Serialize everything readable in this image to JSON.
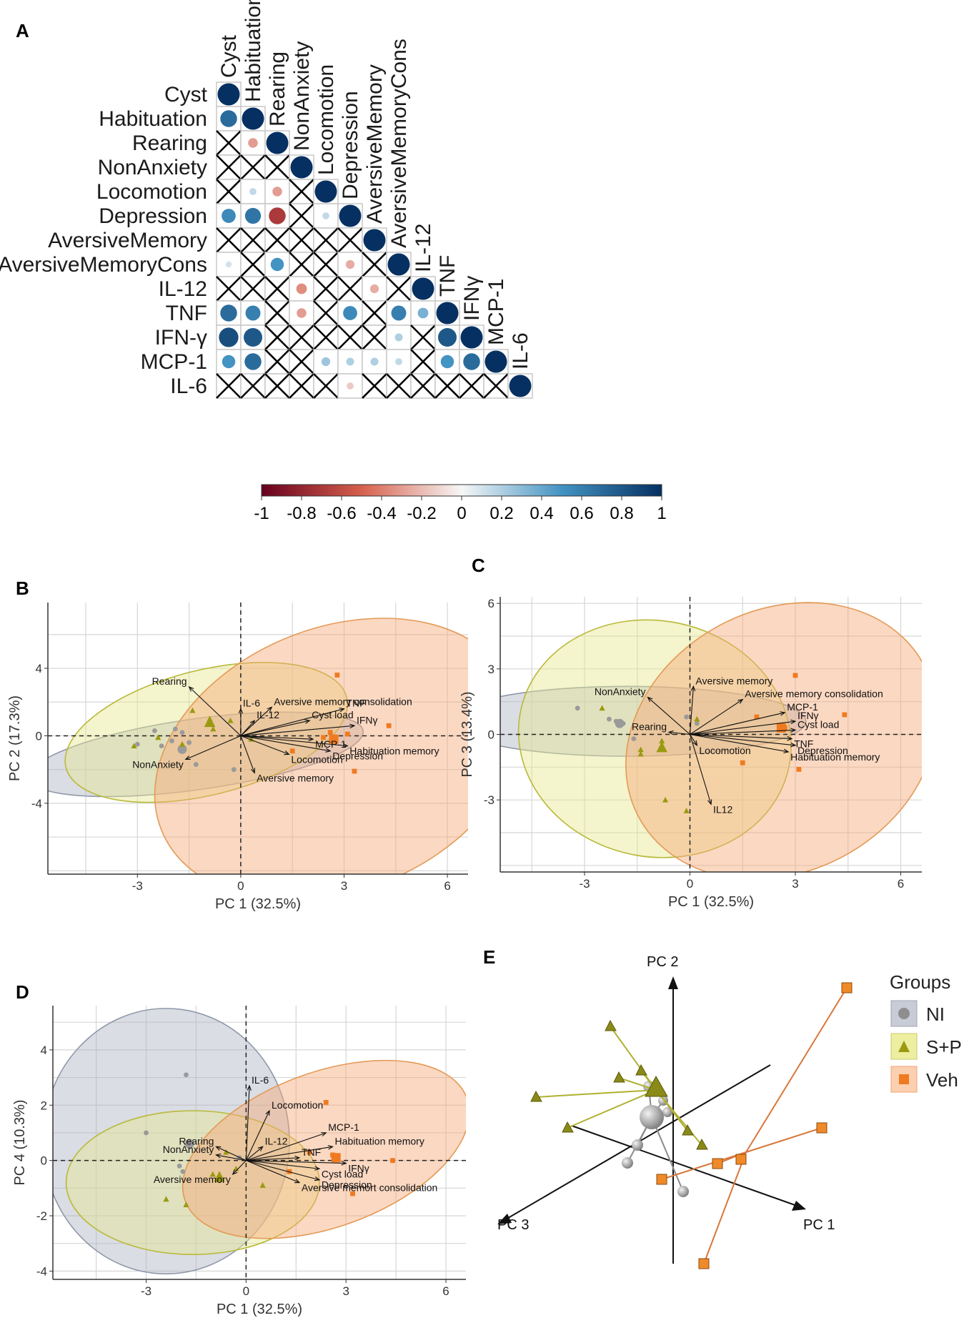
{
  "panel_letters": {
    "A": "A",
    "B": "B",
    "C": "C",
    "D": "D",
    "E": "E"
  },
  "colors": {
    "NI": "#9a9a9a",
    "SP": "#9a9a10",
    "Veh": "#f07a20",
    "NI_fill": "#aeb4c2",
    "SP_fill": "#e6e690",
    "Veh_fill": "#f6a878",
    "SP_line": "#a0a020",
    "Veh_line": "#d88a3a"
  },
  "chart_data": [
    {
      "panel": "A",
      "type": "heatmap",
      "title": "",
      "variables": [
        "Cyst",
        "Habituation",
        "Rearing",
        "NonAnxiety",
        "Locomotion",
        "Depression",
        "AversiveMemory",
        "AversiveMemoryCons",
        "IL-12",
        "TNF",
        "IFN-γ",
        "MCP-1",
        "IL-6"
      ],
      "column_labels": [
        "Cyst",
        "Habituation",
        "Rearing",
        "NonAnxiety",
        "Locomotion",
        "Depression",
        "AversiveMemory",
        "AversiveMemoryCons",
        "IL-12",
        "TNF",
        "IFNγ",
        "MCP-1",
        "IL-6"
      ],
      "colorbar": {
        "range": [
          -1,
          1
        ],
        "ticks": [
          "-1",
          "-0.8",
          "-0.6",
          "-0.4",
          "-0.2",
          "0",
          "0.2",
          "0.4",
          "0.6",
          "0.8",
          "1"
        ]
      },
      "matrix_lower": [
        [
          1
        ],
        [
          0.7,
          1
        ],
        [
          null,
          -0.3,
          1
        ],
        [
          null,
          null,
          null,
          1
        ],
        [
          null,
          0.15,
          -0.3,
          null,
          1
        ],
        [
          0.55,
          0.65,
          -0.7,
          null,
          0.15,
          1
        ],
        [
          null,
          null,
          null,
          null,
          null,
          null,
          1
        ],
        [
          0.1,
          null,
          0.5,
          null,
          null,
          -0.25,
          null,
          1
        ],
        [
          null,
          null,
          null,
          -0.35,
          null,
          null,
          -0.25,
          null,
          1
        ],
        [
          0.7,
          0.6,
          null,
          -0.3,
          null,
          0.55,
          null,
          0.6,
          0.35,
          1
        ],
        [
          0.85,
          0.8,
          null,
          null,
          null,
          null,
          null,
          0.2,
          null,
          0.8,
          1
        ],
        [
          0.5,
          0.7,
          null,
          null,
          0.25,
          0.2,
          0.2,
          0.15,
          null,
          0.5,
          0.7,
          1
        ],
        [
          null,
          null,
          null,
          null,
          null,
          -0.15,
          null,
          null,
          null,
          null,
          null,
          null,
          1
        ]
      ],
      "crossed_out": "cells with non-significant correlation marked with X"
    },
    {
      "panel": "B",
      "type": "scatter",
      "xlabel": "PC 1 (32.5%)",
      "ylabel": "PC 2 (17.3%)",
      "xlim": [
        -5.6,
        6.6
      ],
      "ylim": [
        -8.2,
        7.9
      ],
      "xticks": [
        -3,
        0,
        3,
        6
      ],
      "yticks": [
        -4,
        0,
        4
      ],
      "series": [
        {
          "name": "NI",
          "marker": "circle",
          "points": [
            [
              -3.0,
              -0.5
            ],
            [
              -2.5,
              0.3
            ],
            [
              -2.3,
              -0.6
            ],
            [
              -2.0,
              -0.3
            ],
            [
              -1.9,
              0.4
            ],
            [
              -1.7,
              0.2
            ],
            [
              -1.5,
              -0.4
            ],
            [
              -1.3,
              -1.7
            ],
            [
              -0.2,
              -2.0
            ]
          ],
          "centroid": [
            -1.7,
            -0.8
          ]
        },
        {
          "name": "S+P",
          "marker": "triangle",
          "points": [
            [
              -3.1,
              -0.6
            ],
            [
              -2.4,
              -0.1
            ],
            [
              -1.4,
              1.5
            ],
            [
              -0.9,
              1.0
            ],
            [
              -0.8,
              0.4
            ],
            [
              -0.3,
              0.9
            ],
            [
              0.3,
              -0.2
            ],
            [
              -1.7,
              -0.5
            ]
          ],
          "centroid": [
            -0.9,
            0.8
          ]
        },
        {
          "name": "Veh",
          "marker": "square",
          "points": [
            [
              2.8,
              3.6
            ],
            [
              4.3,
              0.6
            ],
            [
              3.3,
              -2.1
            ],
            [
              2.6,
              0.2
            ],
            [
              2.4,
              -0.1
            ],
            [
              1.5,
              -0.9
            ],
            [
              3.1,
              0.1
            ]
          ],
          "centroid": [
            2.7,
            -0.2
          ]
        }
      ],
      "ellipses": [
        {
          "group": "NI",
          "center": [
            -1.3,
            -1.1
          ],
          "rx": 4.9,
          "ry": 2.1,
          "rotation_deg": -8
        },
        {
          "group": "S+P",
          "center": [
            -1.0,
            0.2
          ],
          "rx": 4.2,
          "ry": 3.7,
          "rotation_deg": -14
        },
        {
          "group": "Veh",
          "center": [
            2.8,
            -1.4
          ],
          "rx": 5.5,
          "ry": 7.8,
          "rotation_deg": -22
        }
      ],
      "loadings": [
        {
          "label": "Rearing",
          "x": -1.5,
          "y": 2.9
        },
        {
          "label": "IL-6",
          "x": 0.0,
          "y": 1.6
        },
        {
          "label": "Aversive memory consolidation",
          "x": 0.9,
          "y": 1.7
        },
        {
          "label": "IL-12",
          "x": 0.4,
          "y": 0.9
        },
        {
          "label": "TNF",
          "x": 3.0,
          "y": 1.6
        },
        {
          "label": "Cyst load",
          "x": 2.0,
          "y": 0.9
        },
        {
          "label": "IFNγ",
          "x": 3.3,
          "y": 0.6
        },
        {
          "label": "MCP-1",
          "x": 2.1,
          "y": -0.2
        },
        {
          "label": "Habituation memory",
          "x": 3.1,
          "y": -0.6
        },
        {
          "label": "Depression",
          "x": 2.6,
          "y": -0.9
        },
        {
          "label": "Locomotion",
          "x": 1.4,
          "y": -1.1
        },
        {
          "label": "NonAnxiety",
          "x": -1.6,
          "y": -1.4
        },
        {
          "label": "Aversive memory",
          "x": 0.4,
          "y": -2.2
        }
      ]
    },
    {
      "panel": "C",
      "type": "scatter",
      "xlabel": "PC 1 (32.5%)",
      "ylabel": "PC 3 (13.4%)",
      "xlim": [
        -5.4,
        6.6
      ],
      "ylim": [
        -6.3,
        6.3
      ],
      "xticks": [
        -3,
        0,
        3,
        6
      ],
      "yticks": [
        -3,
        0,
        3,
        6
      ],
      "series": [
        {
          "name": "NI",
          "marker": "circle",
          "points": [
            [
              -3.2,
              1.2
            ],
            [
              -2.3,
              0.7
            ],
            [
              -2.1,
              0.6
            ],
            [
              -1.9,
              0.5
            ],
            [
              -1.6,
              -0.2
            ],
            [
              -0.1,
              0.8
            ],
            [
              0.2,
              0.5
            ]
          ],
          "centroid": [
            -2.0,
            0.5
          ]
        },
        {
          "name": "S+P",
          "marker": "triangle",
          "points": [
            [
              -2.5,
              1.2
            ],
            [
              -1.4,
              -0.7
            ],
            [
              -1.4,
              -0.9
            ],
            [
              -0.7,
              -3.0
            ],
            [
              -0.1,
              -3.5
            ],
            [
              0.2,
              0.7
            ],
            [
              -0.8,
              -0.3
            ]
          ],
          "centroid": [
            -0.8,
            -0.6
          ]
        },
        {
          "name": "Veh",
          "marker": "square",
          "points": [
            [
              3.0,
              2.7
            ],
            [
              4.4,
              0.9
            ],
            [
              3.1,
              -1.6
            ],
            [
              1.5,
              -1.3
            ],
            [
              2.6,
              0.2
            ],
            [
              2.7,
              0.3
            ],
            [
              1.9,
              0.8
            ]
          ],
          "centroid": [
            2.6,
            0.3
          ]
        }
      ],
      "ellipses": [
        {
          "group": "NI",
          "center": [
            -1.8,
            0.6
          ],
          "rx": 5.1,
          "ry": 1.6,
          "rotation_deg": 0
        },
        {
          "group": "S+P",
          "center": [
            -1.0,
            -0.2
          ],
          "rx": 3.9,
          "ry": 5.4,
          "rotation_deg": 12
        },
        {
          "group": "Veh",
          "center": [
            2.6,
            -0.3
          ],
          "rx": 4.6,
          "ry": 6.0,
          "rotation_deg": -28
        }
      ],
      "loadings": [
        {
          "label": "Aversive memory",
          "x": 0.1,
          "y": 2.2
        },
        {
          "label": "NonAnxiety",
          "x": -1.2,
          "y": 1.7
        },
        {
          "label": "Aversive memory consolidation",
          "x": 1.5,
          "y": 1.6
        },
        {
          "label": "MCP-1",
          "x": 2.7,
          "y": 1.0
        },
        {
          "label": "IFNγ",
          "x": 3.0,
          "y": 0.6
        },
        {
          "label": "Cyst load",
          "x": 3.0,
          "y": 0.2
        },
        {
          "label": "TNF",
          "x": 2.9,
          "y": -0.2
        },
        {
          "label": "Depression",
          "x": 3.0,
          "y": -0.5
        },
        {
          "label": "Habituation memory",
          "x": 2.8,
          "y": -0.8
        },
        {
          "label": "Rearing",
          "x": -0.6,
          "y": 0.1
        },
        {
          "label": "Locomotion",
          "x": 0.2,
          "y": -0.5
        },
        {
          "label": "IL12",
          "x": 0.6,
          "y": -3.2
        }
      ]
    },
    {
      "panel": "D",
      "type": "scatter",
      "xlabel": "PC 1 (32.5%)",
      "ylabel": "PC 4 (10.3%)",
      "xlim": [
        -5.8,
        6.6
      ],
      "ylim": [
        -4.3,
        5.6
      ],
      "xticks": [
        -3,
        0,
        3,
        6
      ],
      "yticks": [
        -4,
        -2,
        0,
        2,
        4
      ],
      "series": [
        {
          "name": "NI",
          "marker": "circle",
          "points": [
            [
              -3.0,
              1.0
            ],
            [
              -1.8,
              3.1
            ],
            [
              -1.7,
              0.7
            ],
            [
              -1.7,
              0.5
            ],
            [
              -2.0,
              -0.2
            ],
            [
              -1.9,
              -0.4
            ],
            [
              -0.2,
              0.1
            ]
          ],
          "centroid": [
            -1.7,
            0.6
          ]
        },
        {
          "name": "S+P",
          "marker": "triangle",
          "points": [
            [
              -2.4,
              -1.4
            ],
            [
              -1.8,
              -1.6
            ],
            [
              -1.0,
              -0.5
            ],
            [
              -0.8,
              -0.7
            ],
            [
              -0.6,
              0.3
            ],
            [
              0.5,
              -0.9
            ],
            [
              -0.3,
              -0.3
            ]
          ],
          "centroid": [
            -0.8,
            -0.6
          ]
        },
        {
          "name": "Veh",
          "marker": "square",
          "points": [
            [
              2.4,
              2.1
            ],
            [
              4.4,
              0.0
            ],
            [
              3.2,
              -1.2
            ],
            [
              1.3,
              -0.4
            ],
            [
              2.6,
              0.2
            ],
            [
              2.7,
              0.1
            ],
            [
              1.9,
              0.3
            ]
          ],
          "centroid": [
            2.7,
            0.1
          ]
        }
      ],
      "ellipses": [
        {
          "group": "NI",
          "center": [
            -2.4,
            0.7
          ],
          "rx": 3.7,
          "ry": 4.8,
          "rotation_deg": 0
        },
        {
          "group": "S+P",
          "center": [
            -1.6,
            -0.8
          ],
          "rx": 3.8,
          "ry": 2.6,
          "rotation_deg": 0
        },
        {
          "group": "Veh",
          "center": [
            2.4,
            0.4
          ],
          "rx": 4.5,
          "ry": 2.8,
          "rotation_deg": -20
        }
      ],
      "loadings": [
        {
          "label": "IL-6",
          "x": 0.1,
          "y": 2.7
        },
        {
          "label": "Locomotion",
          "x": 0.7,
          "y": 1.8
        },
        {
          "label": "MCP-1",
          "x": 2.4,
          "y": 1.0
        },
        {
          "label": "Habituation memory",
          "x": 2.6,
          "y": 0.5
        },
        {
          "label": "Rearing",
          "x": -0.9,
          "y": 0.5
        },
        {
          "label": "IL-12",
          "x": 0.5,
          "y": 0.5
        },
        {
          "label": "NonAnxiety",
          "x": -0.9,
          "y": 0.2
        },
        {
          "label": "TNF",
          "x": 1.6,
          "y": 0.1
        },
        {
          "label": "IFNγ",
          "x": 3.0,
          "y": -0.1
        },
        {
          "label": "Cyst load",
          "x": 2.2,
          "y": -0.3
        },
        {
          "label": "Aversive memory",
          "x": -0.4,
          "y": -0.5
        },
        {
          "label": "Depression",
          "x": 2.2,
          "y": -0.7
        },
        {
          "label": "Aversive memort consolidation",
          "x": 1.6,
          "y": -0.8
        }
      ]
    },
    {
      "panel": "E",
      "type": "scatter",
      "subtype": "3d",
      "axes": [
        "PC 1",
        "PC 2",
        "PC 3"
      ],
      "legend_title": "Groups",
      "legend_position": "right",
      "series": [
        {
          "name": "NI",
          "marker": "sphere"
        },
        {
          "name": "S+P",
          "marker": "pyramid"
        },
        {
          "name": "Veh",
          "marker": "cube"
        }
      ]
    }
  ],
  "legend": {
    "title": "Groups",
    "items": [
      {
        "key": "NI",
        "label": "NI"
      },
      {
        "key": "SP",
        "label": "S+P"
      },
      {
        "key": "Veh",
        "label": "Veh"
      }
    ]
  }
}
